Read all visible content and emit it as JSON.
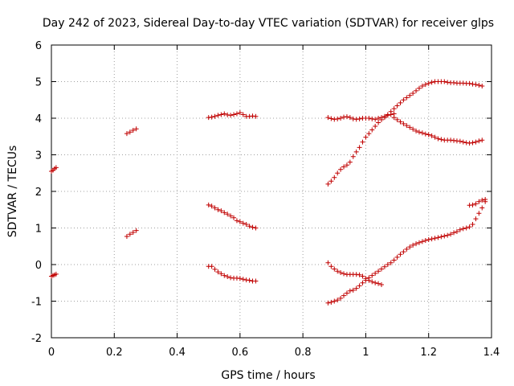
{
  "chart_data": {
    "type": "scatter",
    "title": "Day 242 of 2023, Sidereal Day-to-day VTEC variation (SDTVAR) for receiver glps",
    "xlabel": "GPS time / hours",
    "ylabel": "SDTVAR / TECUs",
    "xlim": [
      0,
      1.4
    ],
    "ylim": [
      -2,
      6
    ],
    "xticks": [
      "0",
      "0.2",
      "0.4",
      "0.6",
      "0.8",
      "1",
      "1.2",
      "1.4"
    ],
    "yticks": [
      "-2",
      "-1",
      "0",
      "1",
      "2",
      "3",
      "4",
      "5",
      "6"
    ],
    "grid": true,
    "marker": "+",
    "color": "#c00000",
    "series": [
      {
        "name": "s1",
        "x": [
          0.0,
          0.005,
          0.01,
          0.015
        ],
        "y": [
          2.55,
          2.58,
          2.62,
          2.65
        ]
      },
      {
        "name": "s2",
        "x": [
          0.0,
          0.005,
          0.01,
          0.015
        ],
        "y": [
          -0.32,
          -0.3,
          -0.28,
          -0.26
        ]
      },
      {
        "name": "s3",
        "x": [
          0.24,
          0.25,
          0.26,
          0.27
        ],
        "y": [
          3.58,
          3.62,
          3.67,
          3.71
        ]
      },
      {
        "name": "s4",
        "x": [
          0.24,
          0.25,
          0.26,
          0.27
        ],
        "y": [
          0.77,
          0.83,
          0.88,
          0.93
        ]
      },
      {
        "name": "s5",
        "x": [
          0.5,
          0.51,
          0.52,
          0.53,
          0.54,
          0.55,
          0.56,
          0.57,
          0.58,
          0.59,
          0.6,
          0.61,
          0.62,
          0.63,
          0.64,
          0.65
        ],
        "y": [
          4.02,
          4.03,
          4.05,
          4.08,
          4.1,
          4.12,
          4.09,
          4.08,
          4.1,
          4.12,
          4.15,
          4.1,
          4.05,
          4.05,
          4.06,
          4.05
        ]
      },
      {
        "name": "s6",
        "x": [
          0.5,
          0.51,
          0.52,
          0.53,
          0.54,
          0.55,
          0.56,
          0.57,
          0.58,
          0.59,
          0.6,
          0.61,
          0.62,
          0.63,
          0.64,
          0.65
        ],
        "y": [
          1.63,
          1.6,
          1.55,
          1.5,
          1.47,
          1.42,
          1.38,
          1.33,
          1.28,
          1.2,
          1.17,
          1.13,
          1.1,
          1.05,
          1.02,
          1.0
        ]
      },
      {
        "name": "s7",
        "x": [
          0.5,
          0.51,
          0.52,
          0.53,
          0.54,
          0.55,
          0.56,
          0.57,
          0.58,
          0.59,
          0.6,
          0.61,
          0.62,
          0.63,
          0.64,
          0.65
        ],
        "y": [
          -0.05,
          -0.05,
          -0.13,
          -0.2,
          -0.25,
          -0.3,
          -0.33,
          -0.36,
          -0.37,
          -0.37,
          -0.38,
          -0.4,
          -0.42,
          -0.43,
          -0.45,
          -0.45
        ]
      },
      {
        "name": "s8",
        "x": [
          0.88,
          0.89,
          0.9,
          0.91,
          0.92,
          0.93,
          0.94,
          0.95,
          0.96,
          0.97,
          0.98,
          0.99,
          1.0,
          1.01,
          1.02,
          1.03,
          1.04,
          1.05,
          1.06,
          1.07,
          1.08,
          1.09
        ],
        "y": [
          4.02,
          3.99,
          3.97,
          3.98,
          4.0,
          4.03,
          4.04,
          4.02,
          3.98,
          3.97,
          3.98,
          4.0,
          4.0,
          4.0,
          3.98,
          3.97,
          4.0,
          4.02,
          4.05,
          4.08,
          4.1,
          4.12
        ]
      },
      {
        "name": "s9",
        "x": [
          1.09,
          1.1,
          1.11,
          1.12,
          1.13,
          1.14,
          1.15,
          1.16,
          1.17,
          1.18,
          1.19,
          1.2,
          1.21,
          1.22,
          1.23,
          1.24,
          1.25,
          1.26,
          1.27,
          1.28,
          1.29,
          1.3,
          1.31,
          1.32,
          1.33,
          1.34,
          1.35,
          1.36,
          1.37
        ],
        "y": [
          4.02,
          3.96,
          3.9,
          3.85,
          3.8,
          3.75,
          3.7,
          3.65,
          3.62,
          3.6,
          3.57,
          3.55,
          3.52,
          3.48,
          3.44,
          3.42,
          3.4,
          3.4,
          3.4,
          3.39,
          3.38,
          3.37,
          3.35,
          3.33,
          3.32,
          3.33,
          3.35,
          3.38,
          3.4
        ]
      },
      {
        "name": "s10",
        "x": [
          0.88,
          0.89,
          0.9,
          0.91,
          0.92,
          0.93,
          0.94,
          0.95,
          0.96,
          0.97,
          0.98,
          0.99,
          1.0,
          1.01,
          1.02,
          1.03,
          1.04,
          1.05,
          1.06,
          1.07,
          1.08,
          1.09,
          1.1,
          1.11,
          1.12,
          1.13,
          1.14,
          1.15,
          1.16,
          1.17,
          1.18,
          1.19,
          1.2,
          1.21,
          1.22,
          1.23,
          1.24,
          1.25,
          1.26,
          1.27,
          1.28,
          1.29,
          1.3,
          1.31,
          1.32,
          1.33,
          1.34,
          1.35,
          1.36,
          1.37
        ],
        "y": [
          2.2,
          2.28,
          2.38,
          2.5,
          2.6,
          2.67,
          2.72,
          2.8,
          2.95,
          3.08,
          3.2,
          3.35,
          3.48,
          3.58,
          3.68,
          3.78,
          3.88,
          3.96,
          4.02,
          4.1,
          4.18,
          4.26,
          4.34,
          4.42,
          4.5,
          4.56,
          4.62,
          4.68,
          4.75,
          4.82,
          4.88,
          4.92,
          4.95,
          4.98,
          5.0,
          5.0,
          5.0,
          5.0,
          4.98,
          4.97,
          4.97,
          4.96,
          4.96,
          4.96,
          4.95,
          4.95,
          4.93,
          4.92,
          4.9,
          4.88
        ]
      },
      {
        "name": "s11",
        "x": [
          0.88,
          0.89,
          0.9,
          0.91,
          0.92,
          0.93,
          0.94,
          0.95,
          0.96,
          0.97,
          0.98,
          0.99,
          1.0,
          1.01,
          1.02,
          1.03,
          1.04,
          1.05,
          1.06,
          1.07,
          1.08,
          1.09,
          1.1,
          1.11,
          1.12,
          1.13,
          1.14,
          1.15,
          1.16,
          1.17,
          1.18,
          1.19,
          1.2,
          1.21,
          1.22,
          1.23,
          1.24,
          1.25,
          1.26,
          1.27,
          1.28,
          1.29,
          1.3,
          1.31,
          1.32,
          1.33,
          1.34,
          1.35,
          1.36,
          1.37,
          1.38
        ],
        "y": [
          -1.05,
          -1.03,
          -1.0,
          -0.97,
          -0.92,
          -0.85,
          -0.78,
          -0.72,
          -0.7,
          -0.65,
          -0.58,
          -0.5,
          -0.43,
          -0.36,
          -0.3,
          -0.24,
          -0.18,
          -0.12,
          -0.06,
          0.0,
          0.05,
          0.12,
          0.2,
          0.28,
          0.35,
          0.42,
          0.48,
          0.53,
          0.57,
          0.6,
          0.63,
          0.66,
          0.68,
          0.7,
          0.72,
          0.74,
          0.76,
          0.78,
          0.8,
          0.83,
          0.87,
          0.9,
          0.95,
          0.98,
          1.0,
          1.03,
          1.1,
          1.25,
          1.4,
          1.55,
          1.72
        ]
      },
      {
        "name": "s12",
        "x": [
          0.88,
          0.89,
          0.9,
          0.91,
          0.92,
          0.93,
          0.94,
          0.95,
          0.96,
          0.97,
          0.98,
          0.99,
          1.0,
          1.01,
          1.02,
          1.03,
          1.04,
          1.05
        ],
        "y": [
          0.05,
          -0.05,
          -0.12,
          -0.18,
          -0.22,
          -0.25,
          -0.27,
          -0.27,
          -0.27,
          -0.27,
          -0.28,
          -0.32,
          -0.38,
          -0.43,
          -0.47,
          -0.5,
          -0.52,
          -0.55
        ]
      },
      {
        "name": "s13",
        "x": [
          1.33,
          1.34,
          1.35,
          1.36,
          1.37,
          1.38
        ],
        "y": [
          1.62,
          1.63,
          1.66,
          1.72,
          1.76,
          1.78
        ]
      }
    ]
  }
}
